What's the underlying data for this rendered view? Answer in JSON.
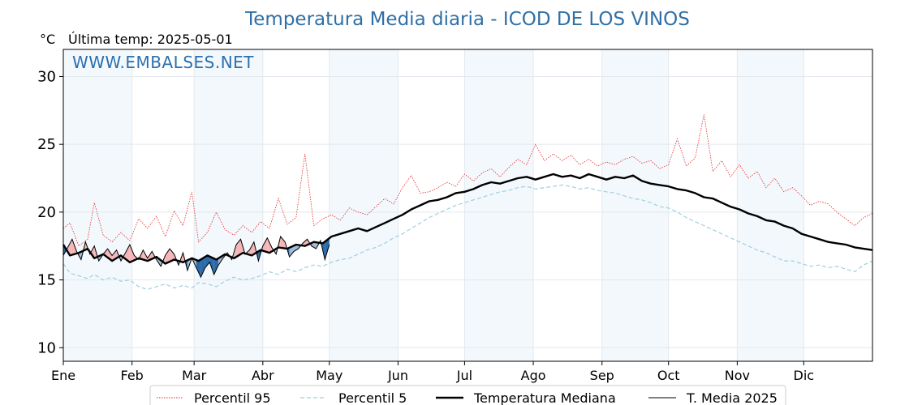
{
  "chart_data": {
    "type": "line",
    "title": "Temperatura Media diaria - ICOD DE LOS VINOS",
    "unit_label": "°C",
    "last_temp_label": "Última temp: 2025-05-01",
    "watermark": "WWW.EMBALSES.NET",
    "ylim": [
      9,
      32
    ],
    "yticks": [
      10,
      15,
      20,
      25,
      30
    ],
    "xlim_days": [
      1,
      366
    ],
    "months": [
      {
        "label": "Ene",
        "day": 1
      },
      {
        "label": "Feb",
        "day": 32
      },
      {
        "label": "Mar",
        "day": 60
      },
      {
        "label": "Abr",
        "day": 91
      },
      {
        "label": "May",
        "day": 121
      },
      {
        "label": "Jun",
        "day": 152
      },
      {
        "label": "Jul",
        "day": 182
      },
      {
        "label": "Ago",
        "day": 213
      },
      {
        "label": "Sep",
        "day": 244
      },
      {
        "label": "Oct",
        "day": 274
      },
      {
        "label": "Nov",
        "day": 305
      },
      {
        "label": "Dic",
        "day": 335
      }
    ],
    "grid": true,
    "legend_position": "bottom",
    "series": [
      {
        "name": "Percentil 95",
        "color": "#e8262a",
        "style": "dotted",
        "x": [
          1,
          4,
          8,
          12,
          15,
          19,
          23,
          27,
          31,
          35,
          39,
          43,
          47,
          51,
          55,
          59,
          62,
          66,
          70,
          74,
          78,
          82,
          86,
          90,
          94,
          98,
          102,
          106,
          110,
          114,
          118,
          122,
          126,
          130,
          134,
          138,
          142,
          146,
          150,
          154,
          158,
          162,
          166,
          170,
          174,
          178,
          182,
          186,
          190,
          194,
          198,
          202,
          206,
          210,
          214,
          218,
          222,
          226,
          230,
          234,
          238,
          242,
          246,
          250,
          254,
          258,
          262,
          266,
          270,
          274,
          278,
          282,
          286,
          290,
          294,
          298,
          302,
          306,
          310,
          314,
          318,
          322,
          326,
          330,
          334,
          338,
          342,
          346,
          350,
          354,
          358,
          362,
          366
        ],
        "y": [
          18.8,
          19.2,
          17.5,
          18.0,
          20.7,
          18.3,
          17.8,
          18.5,
          17.9,
          19.5,
          18.8,
          19.7,
          18.2,
          20.1,
          19.0,
          21.5,
          17.8,
          18.5,
          20.0,
          18.7,
          18.3,
          19.0,
          18.5,
          19.3,
          18.8,
          21.0,
          19.1,
          19.6,
          24.3,
          19.0,
          19.5,
          19.8,
          19.4,
          20.3,
          20.0,
          19.8,
          20.4,
          21.0,
          20.6,
          21.8,
          22.7,
          21.4,
          21.5,
          21.8,
          22.2,
          21.9,
          22.8,
          22.3,
          22.9,
          23.2,
          22.6,
          23.3,
          23.9,
          23.5,
          25.0,
          23.8,
          24.3,
          23.8,
          24.2,
          23.5,
          23.9,
          23.4,
          23.7,
          23.5,
          23.9,
          24.1,
          23.6,
          23.8,
          23.2,
          23.5,
          25.4,
          23.4,
          24.0,
          27.2,
          23.0,
          23.8,
          22.6,
          23.5,
          22.5,
          23.0,
          21.8,
          22.5,
          21.5,
          21.8,
          21.2,
          20.5,
          20.8,
          20.6,
          20.0,
          19.5,
          19.0,
          19.6,
          19.9
        ]
      },
      {
        "name": "Percentil 5",
        "color": "#9fcfe0",
        "style": "dashed",
        "x": [
          1,
          4,
          8,
          12,
          15,
          19,
          23,
          27,
          31,
          35,
          39,
          43,
          47,
          51,
          55,
          59,
          62,
          66,
          70,
          74,
          78,
          82,
          86,
          90,
          94,
          98,
          102,
          106,
          110,
          114,
          118,
          122,
          126,
          130,
          134,
          138,
          142,
          146,
          150,
          154,
          158,
          162,
          166,
          170,
          174,
          178,
          182,
          186,
          190,
          194,
          198,
          202,
          206,
          210,
          214,
          218,
          222,
          226,
          230,
          234,
          238,
          242,
          246,
          250,
          254,
          258,
          262,
          266,
          270,
          274,
          278,
          282,
          286,
          290,
          294,
          298,
          302,
          306,
          310,
          314,
          318,
          322,
          326,
          330,
          334,
          338,
          342,
          346,
          350,
          354,
          358,
          362,
          366
        ],
        "y": [
          16.2,
          15.5,
          15.3,
          15.1,
          15.4,
          15.0,
          15.2,
          14.9,
          15.0,
          14.5,
          14.3,
          14.5,
          14.7,
          14.4,
          14.6,
          14.4,
          14.8,
          14.7,
          14.5,
          14.9,
          15.2,
          15.0,
          15.1,
          15.3,
          15.6,
          15.4,
          15.8,
          15.6,
          15.9,
          16.1,
          16.0,
          16.3,
          16.5,
          16.6,
          16.9,
          17.2,
          17.4,
          17.7,
          18.1,
          18.4,
          18.8,
          19.2,
          19.6,
          19.9,
          20.2,
          20.5,
          20.7,
          20.9,
          21.1,
          21.3,
          21.5,
          21.6,
          21.8,
          21.9,
          21.7,
          21.8,
          21.9,
          22.0,
          21.9,
          21.7,
          21.8,
          21.6,
          21.5,
          21.4,
          21.2,
          21.0,
          20.9,
          20.7,
          20.4,
          20.3,
          20.0,
          19.6,
          19.3,
          19.0,
          18.7,
          18.4,
          18.1,
          17.8,
          17.5,
          17.2,
          17.0,
          16.7,
          16.4,
          16.4,
          16.2,
          16.0,
          16.1,
          15.9,
          16.0,
          15.8,
          15.6,
          16.1,
          16.4
        ]
      },
      {
        "name": "Temperatura Mediana",
        "color": "#000000",
        "style": "solid-thick",
        "x": [
          1,
          4,
          8,
          12,
          15,
          19,
          23,
          27,
          31,
          35,
          39,
          43,
          47,
          51,
          55,
          59,
          62,
          66,
          70,
          74,
          78,
          82,
          86,
          90,
          94,
          98,
          102,
          106,
          110,
          114,
          118,
          122,
          126,
          130,
          134,
          138,
          142,
          146,
          150,
          154,
          158,
          162,
          166,
          170,
          174,
          178,
          182,
          186,
          190,
          194,
          198,
          202,
          206,
          210,
          214,
          218,
          222,
          226,
          230,
          234,
          238,
          242,
          246,
          250,
          254,
          258,
          262,
          266,
          270,
          274,
          278,
          282,
          286,
          290,
          294,
          298,
          302,
          306,
          310,
          314,
          318,
          322,
          326,
          330,
          334,
          338,
          342,
          346,
          350,
          354,
          358,
          362,
          366
        ],
        "y": [
          17.6,
          16.8,
          17.0,
          17.3,
          16.6,
          16.9,
          16.4,
          16.8,
          16.3,
          16.6,
          16.4,
          16.7,
          16.2,
          16.5,
          16.3,
          16.6,
          16.4,
          16.8,
          16.5,
          16.9,
          16.6,
          17.0,
          16.8,
          17.2,
          17.0,
          17.4,
          17.3,
          17.6,
          17.5,
          17.8,
          17.7,
          18.2,
          18.4,
          18.6,
          18.8,
          18.6,
          18.9,
          19.2,
          19.5,
          19.8,
          20.2,
          20.5,
          20.8,
          20.9,
          21.1,
          21.4,
          21.5,
          21.7,
          22.0,
          22.2,
          22.1,
          22.3,
          22.5,
          22.6,
          22.4,
          22.6,
          22.8,
          22.6,
          22.7,
          22.5,
          22.8,
          22.6,
          22.4,
          22.6,
          22.5,
          22.7,
          22.3,
          22.1,
          22.0,
          21.9,
          21.7,
          21.6,
          21.4,
          21.1,
          21.0,
          20.7,
          20.4,
          20.2,
          19.9,
          19.7,
          19.4,
          19.3,
          19.0,
          18.8,
          18.4,
          18.2,
          18.0,
          17.8,
          17.7,
          17.6,
          17.4,
          17.3,
          17.2
        ]
      },
      {
        "name": "T. Media 2025",
        "color": "#000000",
        "style": "solid-thin",
        "x": [
          1,
          3,
          5,
          7,
          9,
          11,
          13,
          15,
          17,
          19,
          21,
          23,
          25,
          27,
          29,
          31,
          33,
          35,
          37,
          39,
          41,
          43,
          45,
          47,
          49,
          51,
          53,
          55,
          57,
          59,
          61,
          63,
          65,
          67,
          69,
          71,
          73,
          75,
          77,
          79,
          81,
          83,
          85,
          87,
          89,
          91,
          93,
          95,
          97,
          99,
          101,
          103,
          105,
          107,
          109,
          111,
          113,
          115,
          117,
          119,
          121
        ],
        "y": [
          16.8,
          17.4,
          18.0,
          17.1,
          16.5,
          17.8,
          16.9,
          17.5,
          16.4,
          16.9,
          17.3,
          16.8,
          17.2,
          16.4,
          17.0,
          17.6,
          16.8,
          16.5,
          17.2,
          16.6,
          17.1,
          16.5,
          16.0,
          16.8,
          17.3,
          16.9,
          16.1,
          17.0,
          15.7,
          16.6,
          15.9,
          15.2,
          15.9,
          16.3,
          15.4,
          16.1,
          16.6,
          17.0,
          16.5,
          17.6,
          18.0,
          16.9,
          17.2,
          17.8,
          16.4,
          17.5,
          18.1,
          17.4,
          16.9,
          18.2,
          17.8,
          16.7,
          17.1,
          17.3,
          17.7,
          18.0,
          17.5,
          17.3,
          17.9,
          16.5,
          17.6
        ]
      }
    ]
  }
}
